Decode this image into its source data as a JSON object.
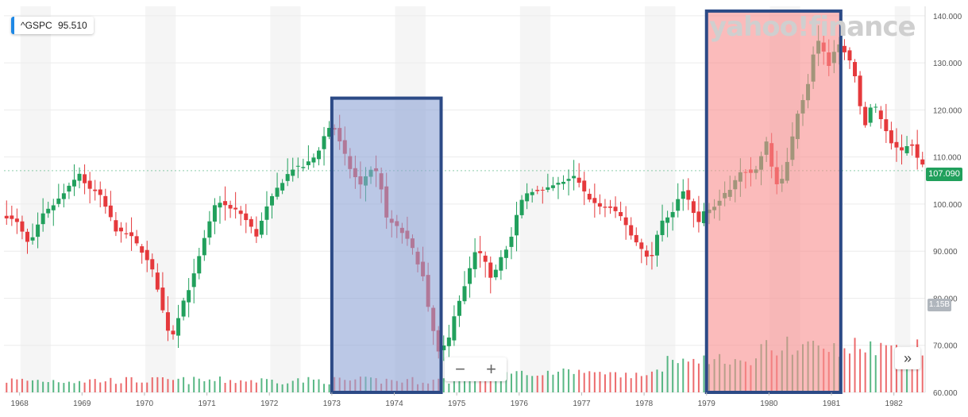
{
  "ticker": {
    "symbol": "^GSPC",
    "value": "95.510",
    "indicator_color": "#1e88e5"
  },
  "watermark": "yahoo!finance",
  "controls": {
    "zoom_out": "−",
    "zoom_in": "+",
    "next": "»"
  },
  "badges": {
    "last_price": "107.090",
    "volume": "1.15B"
  },
  "colors": {
    "up": "#21a05c",
    "down": "#e5393c",
    "blue_box_fill": "#8ea4d6",
    "blue_box_border": "#2c4a86",
    "red_box_fill": "#f98e8e"
  },
  "chart_data": {
    "type": "candlestick",
    "title": "",
    "xlabel": "",
    "ylabel": "",
    "x_ticks": [
      "1968",
      "1969",
      "1970",
      "1971",
      "1972",
      "1973",
      "1974",
      "1975",
      "1976",
      "1977",
      "1978",
      "1979",
      "1980",
      "1981",
      "1982"
    ],
    "y_ticks": [
      "60.000",
      "70.000",
      "80.000",
      "90.000",
      "100.000",
      "110.000",
      "120.000",
      "130.000",
      "140.000"
    ],
    "ylim": [
      60,
      142
    ],
    "xlim": [
      1967.75,
      1982.5
    ],
    "grid": true,
    "price_series": [
      [
        1967.75,
        98.0
      ],
      [
        1968.0,
        96.0
      ],
      [
        1968.2,
        91.0
      ],
      [
        1968.4,
        97.5
      ],
      [
        1968.6,
        100.0
      ],
      [
        1968.8,
        103.0
      ],
      [
        1969.0,
        106.5
      ],
      [
        1969.15,
        103.0
      ],
      [
        1969.3,
        102.5
      ],
      [
        1969.45,
        98.5
      ],
      [
        1969.6,
        94.0
      ],
      [
        1969.8,
        93.5
      ],
      [
        1970.0,
        90.0
      ],
      [
        1970.2,
        85.0
      ],
      [
        1970.4,
        73.5
      ],
      [
        1970.5,
        72.5
      ],
      [
        1970.65,
        79.0
      ],
      [
        1970.8,
        83.5
      ],
      [
        1971.0,
        92.5
      ],
      [
        1971.2,
        101.0
      ],
      [
        1971.4,
        99.0
      ],
      [
        1971.55,
        98.5
      ],
      [
        1971.7,
        96.0
      ],
      [
        1971.85,
        93.0
      ],
      [
        1971.95,
        98.0
      ],
      [
        1972.15,
        103.0
      ],
      [
        1972.4,
        107.5
      ],
      [
        1972.6,
        108.0
      ],
      [
        1972.8,
        110.5
      ],
      [
        1972.95,
        115.5
      ],
      [
        1973.05,
        117.0
      ],
      [
        1973.2,
        112.0
      ],
      [
        1973.35,
        107.0
      ],
      [
        1973.5,
        104.0
      ],
      [
        1973.65,
        107.5
      ],
      [
        1973.8,
        106.5
      ],
      [
        1973.9,
        97.0
      ],
      [
        1974.05,
        95.5
      ],
      [
        1974.2,
        93.5
      ],
      [
        1974.35,
        90.0
      ],
      [
        1974.5,
        84.5
      ],
      [
        1974.6,
        76.5
      ],
      [
        1974.75,
        68.5
      ],
      [
        1974.9,
        70.5
      ],
      [
        1975.0,
        76.5
      ],
      [
        1975.2,
        84.0
      ],
      [
        1975.35,
        90.5
      ],
      [
        1975.5,
        88.0
      ],
      [
        1975.6,
        84.0
      ],
      [
        1975.75,
        89.0
      ],
      [
        1975.9,
        92.0
      ],
      [
        1976.05,
        100.0
      ],
      [
        1976.2,
        103.0
      ],
      [
        1976.4,
        102.5
      ],
      [
        1976.6,
        104.0
      ],
      [
        1976.8,
        105.0
      ],
      [
        1976.95,
        106.0
      ],
      [
        1977.1,
        102.0
      ],
      [
        1977.3,
        99.5
      ],
      [
        1977.5,
        99.0
      ],
      [
        1977.7,
        97.0
      ],
      [
        1977.85,
        93.0
      ],
      [
        1978.0,
        90.5
      ],
      [
        1978.15,
        88.0
      ],
      [
        1978.3,
        96.0
      ],
      [
        1978.5,
        98.5
      ],
      [
        1978.65,
        103.0
      ],
      [
        1978.8,
        99.5
      ],
      [
        1978.9,
        95.5
      ],
      [
        1979.0,
        98.5
      ],
      [
        1979.2,
        100.0
      ],
      [
        1979.4,
        103.0
      ],
      [
        1979.6,
        107.5
      ],
      [
        1979.8,
        106.0
      ],
      [
        1980.0,
        113.0
      ],
      [
        1980.1,
        107.0
      ],
      [
        1980.2,
        103.0
      ],
      [
        1980.35,
        110.0
      ],
      [
        1980.5,
        119.5
      ],
      [
        1980.65,
        124.5
      ],
      [
        1980.8,
        135.0
      ],
      [
        1980.9,
        133.0
      ],
      [
        1981.0,
        129.5
      ],
      [
        1981.15,
        134.0
      ],
      [
        1981.3,
        131.5
      ],
      [
        1981.45,
        126.0
      ],
      [
        1981.55,
        115.5
      ],
      [
        1981.7,
        121.5
      ],
      [
        1981.85,
        118.0
      ],
      [
        1982.0,
        113.0
      ],
      [
        1982.15,
        111.0
      ],
      [
        1982.3,
        113.5
      ],
      [
        1982.45,
        108.5
      ]
    ],
    "last_price": 107.09,
    "highlight_regions": [
      {
        "x_start": 1973.0,
        "x_end": 1974.75,
        "color": "blue"
      },
      {
        "x_start": 1979.0,
        "x_end": 1981.15,
        "color": "red"
      }
    ]
  }
}
